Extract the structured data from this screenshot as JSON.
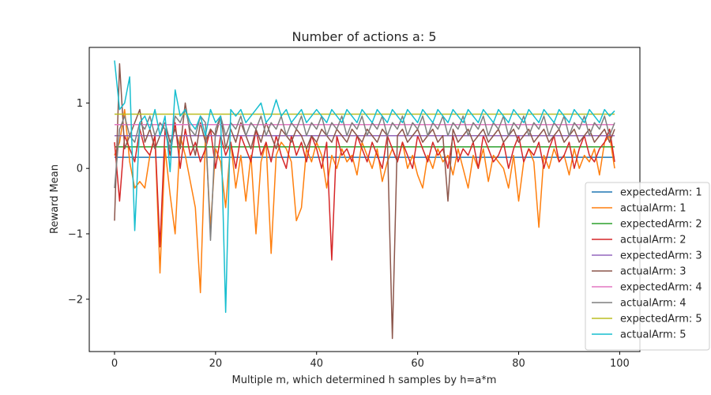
{
  "chart_data": {
    "type": "line",
    "title": "Number of actions a: 5",
    "xlabel": "Multiple m, which determined h samples by h=a*m",
    "ylabel": "Reward Mean",
    "xlim": [
      -5,
      104
    ],
    "ylim": [
      -2.8,
      1.85
    ],
    "xticks": [
      0,
      20,
      40,
      60,
      80,
      100
    ],
    "yticks": [
      -2,
      -1,
      0,
      1
    ],
    "grid": false,
    "legend_position": "right",
    "x": [
      0,
      1,
      2,
      3,
      4,
      5,
      6,
      7,
      8,
      9,
      10,
      11,
      12,
      13,
      14,
      15,
      16,
      17,
      18,
      19,
      20,
      21,
      22,
      23,
      24,
      25,
      26,
      27,
      28,
      29,
      30,
      31,
      32,
      33,
      34,
      35,
      36,
      37,
      38,
      39,
      40,
      41,
      42,
      43,
      44,
      45,
      46,
      47,
      48,
      49,
      50,
      51,
      52,
      53,
      54,
      55,
      56,
      57,
      58,
      59,
      60,
      61,
      62,
      63,
      64,
      65,
      66,
      67,
      68,
      69,
      70,
      71,
      72,
      73,
      74,
      75,
      76,
      77,
      78,
      79,
      80,
      81,
      82,
      83,
      84,
      85,
      86,
      87,
      88,
      89,
      90,
      91,
      92,
      93,
      94,
      95,
      96,
      97,
      98,
      99
    ],
    "series": [
      {
        "name": "expectedArm: 1",
        "color": "#1f77b4",
        "values": [
          0.17,
          0.17,
          0.17,
          0.17,
          0.17,
          0.17,
          0.17,
          0.17,
          0.17,
          0.17,
          0.17,
          0.17,
          0.17,
          0.17,
          0.17,
          0.17,
          0.17,
          0.17,
          0.17,
          0.17,
          0.17,
          0.17,
          0.17,
          0.17,
          0.17,
          0.17,
          0.17,
          0.17,
          0.17,
          0.17,
          0.17,
          0.17,
          0.17,
          0.17,
          0.17,
          0.17,
          0.17,
          0.17,
          0.17,
          0.17,
          0.17,
          0.17,
          0.17,
          0.17,
          0.17,
          0.17,
          0.17,
          0.17,
          0.17,
          0.17,
          0.17,
          0.17,
          0.17,
          0.17,
          0.17,
          0.17,
          0.17,
          0.17,
          0.17,
          0.17,
          0.17,
          0.17,
          0.17,
          0.17,
          0.17,
          0.17,
          0.17,
          0.17,
          0.17,
          0.17,
          0.17,
          0.17,
          0.17,
          0.17,
          0.17,
          0.17,
          0.17,
          0.17,
          0.17,
          0.17,
          0.17,
          0.17,
          0.17,
          0.17,
          0.17,
          0.17,
          0.17,
          0.17,
          0.17,
          0.17,
          0.17,
          0.17,
          0.17,
          0.17,
          0.17,
          0.17,
          0.17,
          0.17,
          0.17,
          0.17
        ]
      },
      {
        "name": "actualArm: 1",
        "color": "#ff7f0e",
        "values": [
          0.2,
          0.4,
          0.9,
          0.1,
          -0.3,
          -0.2,
          -0.3,
          0.2,
          0.5,
          -1.6,
          0.3,
          -0.4,
          -1.0,
          0.5,
          0.2,
          -0.2,
          -0.6,
          -1.9,
          0.5,
          -0.9,
          0.3,
          0.1,
          -0.6,
          0.4,
          -0.3,
          0.2,
          -0.5,
          0.2,
          -1.0,
          0.1,
          0.4,
          -1.3,
          0.2,
          0.4,
          0.3,
          0.1,
          -0.8,
          -0.6,
          0.3,
          0.1,
          0.4,
          0.2,
          -0.3,
          0.2,
          0.0,
          0.3,
          0.1,
          0.2,
          -0.1,
          0.4,
          0.2,
          0.0,
          0.3,
          -0.2,
          0.1,
          0.3,
          0.1,
          0.4,
          0.0,
          0.2,
          -0.1,
          -0.3,
          0.2,
          0.0,
          0.3,
          0.1,
          0.2,
          -0.1,
          0.3,
          0.0,
          -0.3,
          0.2,
          0.0,
          0.3,
          -0.2,
          0.2,
          0.1,
          0.0,
          -0.3,
          0.2,
          -0.5,
          0.1,
          0.3,
          0.1,
          -0.9,
          0.2,
          0.0,
          0.3,
          0.1,
          0.2,
          -0.1,
          0.3,
          0.0,
          0.2,
          0.1,
          0.3,
          -0.1,
          0.4,
          0.5,
          0.0
        ]
      },
      {
        "name": "expectedArm: 2",
        "color": "#2ca02c",
        "values": [
          0.33,
          0.33,
          0.33,
          0.33,
          0.33,
          0.33,
          0.33,
          0.33,
          0.33,
          0.33,
          0.33,
          0.33,
          0.33,
          0.33,
          0.33,
          0.33,
          0.33,
          0.33,
          0.33,
          0.33,
          0.33,
          0.33,
          0.33,
          0.33,
          0.33,
          0.33,
          0.33,
          0.33,
          0.33,
          0.33,
          0.33,
          0.33,
          0.33,
          0.33,
          0.33,
          0.33,
          0.33,
          0.33,
          0.33,
          0.33,
          0.33,
          0.33,
          0.33,
          0.33,
          0.33,
          0.33,
          0.33,
          0.33,
          0.33,
          0.33,
          0.33,
          0.33,
          0.33,
          0.33,
          0.33,
          0.33,
          0.33,
          0.33,
          0.33,
          0.33,
          0.33,
          0.33,
          0.33,
          0.33,
          0.33,
          0.33,
          0.33,
          0.33,
          0.33,
          0.33,
          0.33,
          0.33,
          0.33,
          0.33,
          0.33,
          0.33,
          0.33,
          0.33,
          0.33,
          0.33,
          0.33,
          0.33,
          0.33,
          0.33,
          0.33,
          0.33,
          0.33,
          0.33,
          0.33,
          0.33,
          0.33,
          0.33,
          0.33,
          0.33,
          0.33,
          0.33,
          0.33,
          0.33,
          0.33,
          0.33
        ]
      },
      {
        "name": "actualArm: 2",
        "color": "#d62728",
        "values": [
          0.4,
          -0.5,
          0.5,
          0.3,
          0.1,
          0.6,
          0.3,
          0.2,
          0.5,
          -1.2,
          0.6,
          0.2,
          0.7,
          0.0,
          0.6,
          0.2,
          0.4,
          0.1,
          0.3,
          0.6,
          0.0,
          0.5,
          0.2,
          0.4,
          0.0,
          0.5,
          0.3,
          0.1,
          0.6,
          0.2,
          0.4,
          0.1,
          0.5,
          0.2,
          0.0,
          0.5,
          0.2,
          0.4,
          0.1,
          0.5,
          0.3,
          0.0,
          0.4,
          -1.4,
          0.5,
          0.2,
          0.3,
          0.1,
          0.5,
          0.3,
          0.1,
          0.4,
          0.2,
          0.0,
          0.5,
          0.3,
          0.1,
          0.4,
          0.2,
          0.0,
          0.5,
          0.3,
          0.1,
          0.4,
          0.2,
          0.3,
          0.0,
          0.5,
          0.1,
          0.3,
          0.2,
          0.4,
          0.0,
          0.5,
          0.3,
          0.1,
          0.2,
          0.4,
          0.0,
          0.3,
          0.5,
          0.1,
          0.3,
          0.2,
          0.4,
          0.0,
          0.3,
          0.5,
          0.1,
          0.2,
          0.4,
          0.0,
          0.3,
          0.5,
          0.2,
          0.1,
          0.3,
          0.4,
          0.6,
          0.1
        ]
      },
      {
        "name": "expectedArm: 3",
        "color": "#9467bd",
        "values": [
          0.5,
          0.5,
          0.5,
          0.5,
          0.5,
          0.5,
          0.5,
          0.5,
          0.5,
          0.5,
          0.5,
          0.5,
          0.5,
          0.5,
          0.5,
          0.5,
          0.5,
          0.5,
          0.5,
          0.5,
          0.5,
          0.5,
          0.5,
          0.5,
          0.5,
          0.5,
          0.5,
          0.5,
          0.5,
          0.5,
          0.5,
          0.5,
          0.5,
          0.5,
          0.5,
          0.5,
          0.5,
          0.5,
          0.5,
          0.5,
          0.5,
          0.5,
          0.5,
          0.5,
          0.5,
          0.5,
          0.5,
          0.5,
          0.5,
          0.5,
          0.5,
          0.5,
          0.5,
          0.5,
          0.5,
          0.5,
          0.5,
          0.5,
          0.5,
          0.5,
          0.5,
          0.5,
          0.5,
          0.5,
          0.5,
          0.5,
          0.5,
          0.5,
          0.5,
          0.5,
          0.5,
          0.5,
          0.5,
          0.5,
          0.5,
          0.5,
          0.5,
          0.5,
          0.5,
          0.5,
          0.5,
          0.5,
          0.5,
          0.5,
          0.5,
          0.5,
          0.5,
          0.5,
          0.5,
          0.5,
          0.5,
          0.5,
          0.5,
          0.5,
          0.5,
          0.5,
          0.5,
          0.5,
          0.5,
          0.5
        ]
      },
      {
        "name": "actualArm: 3",
        "color": "#8c564b",
        "values": [
          -0.8,
          1.6,
          0.3,
          0.5,
          0.7,
          0.9,
          0.4,
          0.6,
          0.3,
          0.5,
          0.7,
          0.4,
          0.6,
          0.3,
          1.0,
          0.5,
          0.2,
          0.7,
          0.4,
          0.6,
          0.5,
          0.8,
          0.3,
          0.6,
          0.4,
          0.7,
          0.5,
          0.3,
          0.6,
          0.4,
          0.7,
          0.5,
          0.3,
          0.6,
          0.5,
          0.4,
          0.6,
          0.5,
          0.3,
          0.5,
          0.4,
          0.6,
          0.5,
          0.4,
          0.6,
          0.5,
          0.4,
          0.6,
          0.5,
          0.4,
          0.6,
          0.5,
          0.4,
          0.6,
          0.5,
          -2.6,
          0.5,
          0.6,
          0.4,
          0.5,
          0.6,
          0.4,
          0.5,
          0.6,
          0.4,
          0.5,
          -0.5,
          0.6,
          0.4,
          0.5,
          0.6,
          0.4,
          0.5,
          0.6,
          0.4,
          0.5,
          0.6,
          0.4,
          0.5,
          0.6,
          0.4,
          0.5,
          0.6,
          0.4,
          0.5,
          0.6,
          0.4,
          0.5,
          0.6,
          0.4,
          0.5,
          0.6,
          0.4,
          0.5,
          0.6,
          0.4,
          0.5,
          0.6,
          0.4,
          0.6
        ]
      },
      {
        "name": "expectedArm: 4",
        "color": "#e377c2",
        "values": [
          0.67,
          0.67,
          0.67,
          0.67,
          0.67,
          0.67,
          0.67,
          0.67,
          0.67,
          0.67,
          0.67,
          0.67,
          0.67,
          0.67,
          0.67,
          0.67,
          0.67,
          0.67,
          0.67,
          0.67,
          0.67,
          0.67,
          0.67,
          0.67,
          0.67,
          0.67,
          0.67,
          0.67,
          0.67,
          0.67,
          0.67,
          0.67,
          0.67,
          0.67,
          0.67,
          0.67,
          0.67,
          0.67,
          0.67,
          0.67,
          0.67,
          0.67,
          0.67,
          0.67,
          0.67,
          0.67,
          0.67,
          0.67,
          0.67,
          0.67,
          0.67,
          0.67,
          0.67,
          0.67,
          0.67,
          0.67,
          0.67,
          0.67,
          0.67,
          0.67,
          0.67,
          0.67,
          0.67,
          0.67,
          0.67,
          0.67,
          0.67,
          0.67,
          0.67,
          0.67,
          0.67,
          0.67,
          0.67,
          0.67,
          0.67,
          0.67,
          0.67,
          0.67,
          0.67,
          0.67,
          0.67,
          0.67,
          0.67,
          0.67,
          0.67,
          0.67,
          0.67,
          0.67,
          0.67,
          0.67,
          0.67,
          0.67,
          0.67,
          0.67,
          0.67,
          0.67,
          0.67,
          0.67,
          0.67,
          0.67
        ]
      },
      {
        "name": "actualArm: 4",
        "color": "#7f7f7f",
        "values": [
          -0.3,
          0.6,
          0.8,
          0.5,
          0.4,
          0.7,
          0.6,
          0.8,
          0.5,
          0.7,
          0.6,
          0.3,
          0.8,
          0.7,
          0.9,
          0.6,
          0.5,
          0.8,
          0.7,
          -1.1,
          0.6,
          0.8,
          0.5,
          0.7,
          0.6,
          0.8,
          0.5,
          0.7,
          0.6,
          0.8,
          0.5,
          0.7,
          0.6,
          0.8,
          0.5,
          0.7,
          0.6,
          0.8,
          0.5,
          0.7,
          0.6,
          0.8,
          0.5,
          0.7,
          0.6,
          0.8,
          0.5,
          0.7,
          0.6,
          0.8,
          0.5,
          0.7,
          0.6,
          0.8,
          0.5,
          0.7,
          0.6,
          0.8,
          0.5,
          0.7,
          0.6,
          0.8,
          0.5,
          0.7,
          0.6,
          0.8,
          0.5,
          0.7,
          0.6,
          0.8,
          0.5,
          0.7,
          0.6,
          0.8,
          0.5,
          0.7,
          0.6,
          0.8,
          0.5,
          0.7,
          0.6,
          0.8,
          0.5,
          0.7,
          0.6,
          0.8,
          0.5,
          0.7,
          0.6,
          0.8,
          0.5,
          0.7,
          0.6,
          0.8,
          0.5,
          0.7,
          0.6,
          0.8,
          0.5,
          0.7
        ]
      },
      {
        "name": "expectedArm: 5",
        "color": "#bcbd22",
        "values": [
          0.83,
          0.83,
          0.83,
          0.83,
          0.83,
          0.83,
          0.83,
          0.83,
          0.83,
          0.83,
          0.83,
          0.83,
          0.83,
          0.83,
          0.83,
          0.83,
          0.83,
          0.83,
          0.83,
          0.83,
          0.83,
          0.83,
          0.83,
          0.83,
          0.83,
          0.83,
          0.83,
          0.83,
          0.83,
          0.83,
          0.83,
          0.83,
          0.83,
          0.83,
          0.83,
          0.83,
          0.83,
          0.83,
          0.83,
          0.83,
          0.83,
          0.83,
          0.83,
          0.83,
          0.83,
          0.83,
          0.83,
          0.83,
          0.83,
          0.83,
          0.83,
          0.83,
          0.83,
          0.83,
          0.83,
          0.83,
          0.83,
          0.83,
          0.83,
          0.83,
          0.83,
          0.83,
          0.83,
          0.83,
          0.83,
          0.83,
          0.83,
          0.83,
          0.83,
          0.83,
          0.83,
          0.83,
          0.83,
          0.83,
          0.83,
          0.83,
          0.83,
          0.83,
          0.83,
          0.83,
          0.83,
          0.83,
          0.83,
          0.83,
          0.83,
          0.83,
          0.83,
          0.83,
          0.83,
          0.83,
          0.83,
          0.83,
          0.83,
          0.83,
          0.83,
          0.83,
          0.83,
          0.83,
          0.83,
          0.83
        ]
      },
      {
        "name": "actualArm: 5",
        "color": "#17becf",
        "values": [
          1.65,
          0.9,
          1.0,
          1.4,
          -0.95,
          0.7,
          0.8,
          0.6,
          0.9,
          0.5,
          0.8,
          -0.05,
          1.2,
          0.8,
          0.9,
          0.7,
          0.6,
          0.8,
          0.5,
          0.9,
          0.7,
          0.8,
          -2.2,
          0.9,
          0.8,
          0.9,
          0.7,
          0.8,
          0.9,
          1.0,
          0.7,
          0.8,
          1.05,
          0.8,
          0.9,
          0.7,
          0.8,
          0.9,
          0.7,
          0.8,
          0.9,
          0.8,
          0.7,
          0.9,
          0.8,
          0.7,
          0.9,
          0.8,
          0.7,
          0.9,
          0.8,
          0.7,
          0.9,
          0.8,
          0.7,
          0.9,
          0.8,
          0.7,
          0.9,
          0.8,
          0.7,
          0.9,
          0.8,
          0.7,
          0.9,
          0.8,
          0.7,
          0.9,
          0.8,
          0.7,
          0.9,
          0.8,
          0.7,
          0.9,
          0.8,
          0.7,
          0.9,
          0.8,
          0.7,
          0.9,
          0.8,
          0.7,
          0.9,
          0.8,
          0.7,
          0.9,
          0.8,
          0.7,
          0.9,
          0.8,
          0.7,
          0.9,
          0.8,
          0.7,
          0.9,
          0.8,
          0.7,
          0.9,
          0.8,
          0.88
        ]
      }
    ]
  }
}
